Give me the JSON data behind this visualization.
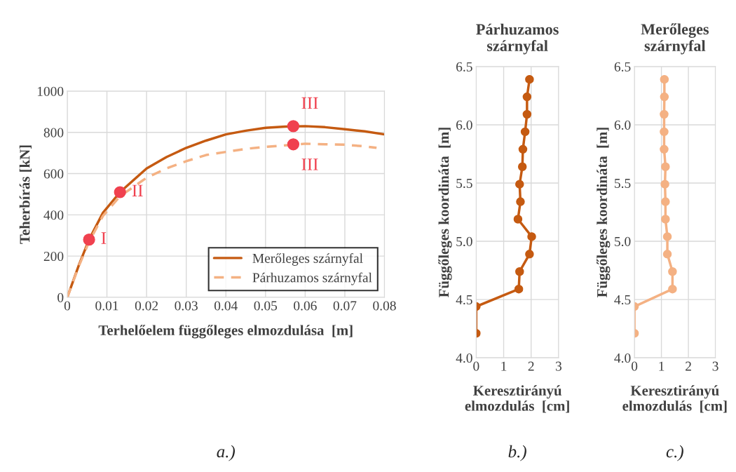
{
  "chart_data": [
    {
      "type": "line",
      "xlabel": "Terhelőelem függőleges elmozdulása  [m]",
      "ylabel": "Teherbírás [kN]",
      "xlim": [
        0,
        0.08
      ],
      "xticks": [
        0,
        0.01,
        0.02,
        0.03,
        0.04,
        0.05,
        0.06,
        0.07,
        0.08
      ],
      "ylim": [
        0,
        1000
      ],
      "yticks": [
        0,
        200,
        400,
        600,
        800,
        1000
      ],
      "grid": true,
      "legend": "bottom right",
      "series": [
        {
          "name": "Merőleges szárnyfal",
          "color": "#c55a11",
          "line_style": "solid",
          "x": [
            0,
            0.003,
            0.0055,
            0.009,
            0.0133,
            0.02,
            0.025,
            0.03,
            0.035,
            0.04,
            0.045,
            0.05,
            0.055,
            0.06,
            0.065,
            0.07,
            0.075,
            0.08
          ],
          "values": [
            0,
            160,
            280,
            410,
            510,
            625,
            680,
            725,
            760,
            790,
            808,
            822,
            828,
            830,
            825,
            815,
            805,
            790
          ]
        },
        {
          "name": "Párhuzamos szárnyfal",
          "color": "#f4b183",
          "line_style": "dashed",
          "x": [
            0,
            0.003,
            0.0055,
            0.009,
            0.0133,
            0.02,
            0.025,
            0.03,
            0.035,
            0.04,
            0.045,
            0.05,
            0.055,
            0.06,
            0.065,
            0.07,
            0.075,
            0.078
          ],
          "values": [
            0,
            155,
            270,
            395,
            490,
            580,
            625,
            660,
            690,
            705,
            720,
            730,
            737,
            745,
            742,
            740,
            732,
            725
          ]
        },
        {
          "type": "scatter",
          "color": "#f0414f",
          "marker": "circle",
          "x": [
            0.0055,
            0.0133,
            0.057,
            0.057
          ],
          "values": [
            280,
            510,
            830,
            742
          ]
        }
      ],
      "annotations": [
        {
          "text": "I",
          "x": 0.0055,
          "y": 280
        },
        {
          "text": "II",
          "x": 0.0133,
          "y": 510
        },
        {
          "text": "III",
          "x": 0.057,
          "y": 830
        },
        {
          "text": "III",
          "x": 0.057,
          "y": 742
        },
        "a.)"
      ]
    },
    {
      "type": "line",
      "title": "Párhuzamos\nszárnyfal",
      "xlabel": "Keresztirányú\nelmozdulás  [cm]",
      "ylabel": "Függőleges koordináta  [m]",
      "xlim": [
        0,
        3
      ],
      "xticks": [
        0,
        1,
        2,
        3
      ],
      "ylim": [
        4.0,
        6.5
      ],
      "yticks": [
        {
          "value": 4.0,
          "label": "4.0"
        },
        {
          "value": 4.5,
          "label": "4.5"
        },
        {
          "value": 5.0,
          "label": "5.0"
        },
        {
          "value": 5.5,
          "label": "5.5"
        },
        {
          "value": 6.0,
          "label": "6.0"
        },
        {
          "value": 6.5,
          "label": "6.5"
        }
      ],
      "grid": true,
      "marker": "circle",
      "series": [
        {
          "color": "#c55a11",
          "x": [
            1.94,
            1.85,
            1.85,
            1.78,
            1.7,
            1.68,
            1.58,
            1.61,
            1.52,
            2.02,
            1.94,
            1.58,
            1.55,
            0,
            0
          ],
          "values": [
            6.39,
            6.24,
            6.09,
            5.94,
            5.79,
            5.64,
            5.49,
            5.34,
            5.19,
            5.04,
            4.89,
            4.74,
            4.59,
            4.44,
            4.21
          ]
        }
      ],
      "annotations": [
        "b.)"
      ]
    },
    {
      "type": "line",
      "title": "Merőleges\nszárnyfal",
      "xlabel": "Keresztirányú\nelmozdulás  [cm]",
      "ylabel": "Függőleges koordináta  [m]",
      "xlim": [
        0,
        3
      ],
      "xticks": [
        0,
        1,
        2,
        3
      ],
      "ylim": [
        4.0,
        6.5
      ],
      "yticks": [
        {
          "value": 4.0,
          "label": "4.0"
        },
        {
          "value": 4.5,
          "label": "4.5"
        },
        {
          "value": 5.0,
          "label": "5.0"
        },
        {
          "value": 5.5,
          "label": "5.5"
        },
        {
          "value": 6.0,
          "label": "6.0"
        },
        {
          "value": 6.5,
          "label": "6.5"
        }
      ],
      "grid": true,
      "marker": "circle",
      "series": [
        {
          "color": "#f4b183",
          "x": [
            1.11,
            1.11,
            1.1,
            1.1,
            1.1,
            1.15,
            1.13,
            1.15,
            1.15,
            1.22,
            1.22,
            1.41,
            1.41,
            0,
            0
          ],
          "values": [
            6.39,
            6.24,
            6.09,
            5.94,
            5.79,
            5.64,
            5.49,
            5.34,
            5.19,
            5.04,
            4.89,
            4.74,
            4.59,
            4.44,
            4.21
          ]
        }
      ],
      "annotations": [
        "c.)"
      ]
    }
  ]
}
